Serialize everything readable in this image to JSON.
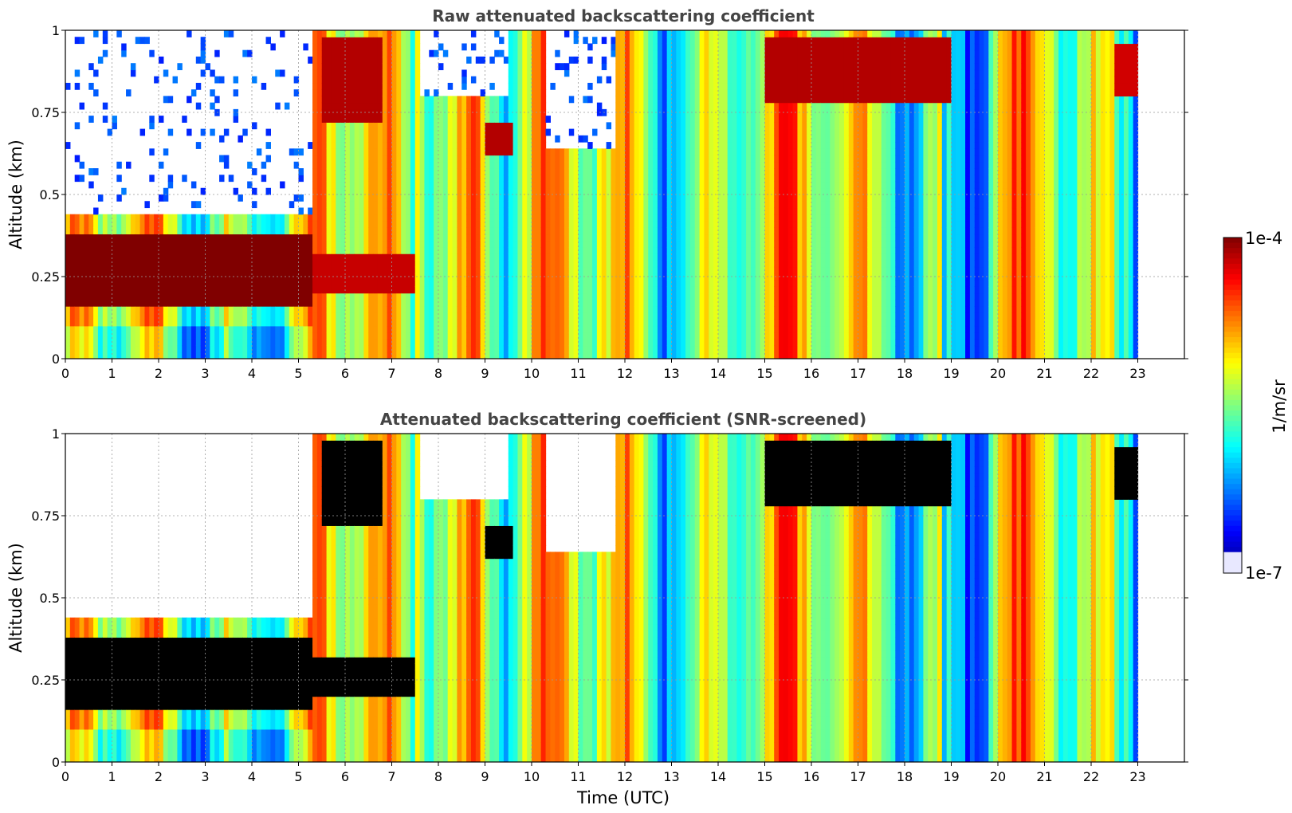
{
  "chart_data": [
    {
      "type": "heatmap",
      "title": "Raw attenuated backscattering coefficient",
      "xlabel": "",
      "ylabel": "Altitude (km)",
      "xlim": [
        0,
        24
      ],
      "ylim": [
        0,
        1
      ],
      "x_ticks": [
        "0",
        "1",
        "2",
        "3",
        "4",
        "5",
        "6",
        "7",
        "8",
        "9",
        "10",
        "11",
        "12",
        "13",
        "14",
        "15",
        "16",
        "17",
        "18",
        "19",
        "20",
        "21",
        "22",
        "23"
      ],
      "y_ticks": [
        "0",
        "0.25",
        "0.5",
        "0.75",
        "1"
      ],
      "grid": true,
      "screened": false,
      "layers": [
        {
          "t0": 0.0,
          "t1": 5.3,
          "base": 0.16,
          "top": 0.37,
          "level": 1.0
        },
        {
          "t0": 5.3,
          "t1": 7.5,
          "base": 0.2,
          "top": 0.32,
          "level": 0.93
        },
        {
          "t0": 5.5,
          "t1": 6.8,
          "base": 0.72,
          "top": 0.98,
          "level": 0.95
        },
        {
          "t0": 9.0,
          "t1": 9.6,
          "base": 0.62,
          "top": 0.72,
          "level": 0.95
        },
        {
          "t0": 15.0,
          "t1": 19.0,
          "base": 0.78,
          "top": 0.98,
          "level": 0.95
        },
        {
          "t0": 22.5,
          "t1": 23.0,
          "base": 0.8,
          "top": 0.95,
          "level": 0.92
        }
      ],
      "clear_regions": [
        {
          "t0": 0.0,
          "t1": 5.3,
          "base": 0.45,
          "top": 1.0
        },
        {
          "t0": 7.6,
          "t1": 9.5,
          "base": 0.8,
          "top": 1.0
        },
        {
          "t0": 10.3,
          "t1": 11.8,
          "base": 0.65,
          "top": 1.0
        }
      ]
    },
    {
      "type": "heatmap",
      "title": "Attenuated backscattering coefficient (SNR-screened)",
      "xlabel": "Time (UTC)",
      "ylabel": "Altitude (km)",
      "xlim": [
        0,
        24
      ],
      "ylim": [
        0,
        1
      ],
      "x_ticks": [
        "0",
        "1",
        "2",
        "3",
        "4",
        "5",
        "6",
        "7",
        "8",
        "9",
        "10",
        "11",
        "12",
        "13",
        "14",
        "15",
        "16",
        "17",
        "18",
        "19",
        "20",
        "21",
        "22",
        "23"
      ],
      "y_ticks": [
        "0",
        "0.25",
        "0.5",
        "0.75",
        "1"
      ],
      "grid": true,
      "screened": true,
      "layers": [
        {
          "t0": 0.0,
          "t1": 5.3,
          "base": 0.16,
          "top": 0.37,
          "level": 1.0
        },
        {
          "t0": 5.3,
          "t1": 7.5,
          "base": 0.2,
          "top": 0.32,
          "level": 0.93
        },
        {
          "t0": 5.5,
          "t1": 6.8,
          "base": 0.72,
          "top": 0.98,
          "level": 0.95
        },
        {
          "t0": 9.0,
          "t1": 9.6,
          "base": 0.62,
          "top": 0.72,
          "level": 0.95
        },
        {
          "t0": 15.0,
          "t1": 19.0,
          "base": 0.78,
          "top": 0.98,
          "level": 0.95
        },
        {
          "t0": 22.5,
          "t1": 23.0,
          "base": 0.8,
          "top": 0.95,
          "level": 0.92
        }
      ],
      "clear_regions": [
        {
          "t0": 0.0,
          "t1": 5.3,
          "base": 0.45,
          "top": 1.0
        },
        {
          "t0": 7.6,
          "t1": 9.5,
          "base": 0.8,
          "top": 1.0
        },
        {
          "t0": 10.3,
          "t1": 11.8,
          "base": 0.65,
          "top": 1.0
        }
      ]
    }
  ],
  "colorbar": {
    "label": "1/m/sr",
    "max_label": "1e-4",
    "min_label": "1e-7",
    "colormap": "jet",
    "scale": "log",
    "screened_color": "#000000"
  }
}
